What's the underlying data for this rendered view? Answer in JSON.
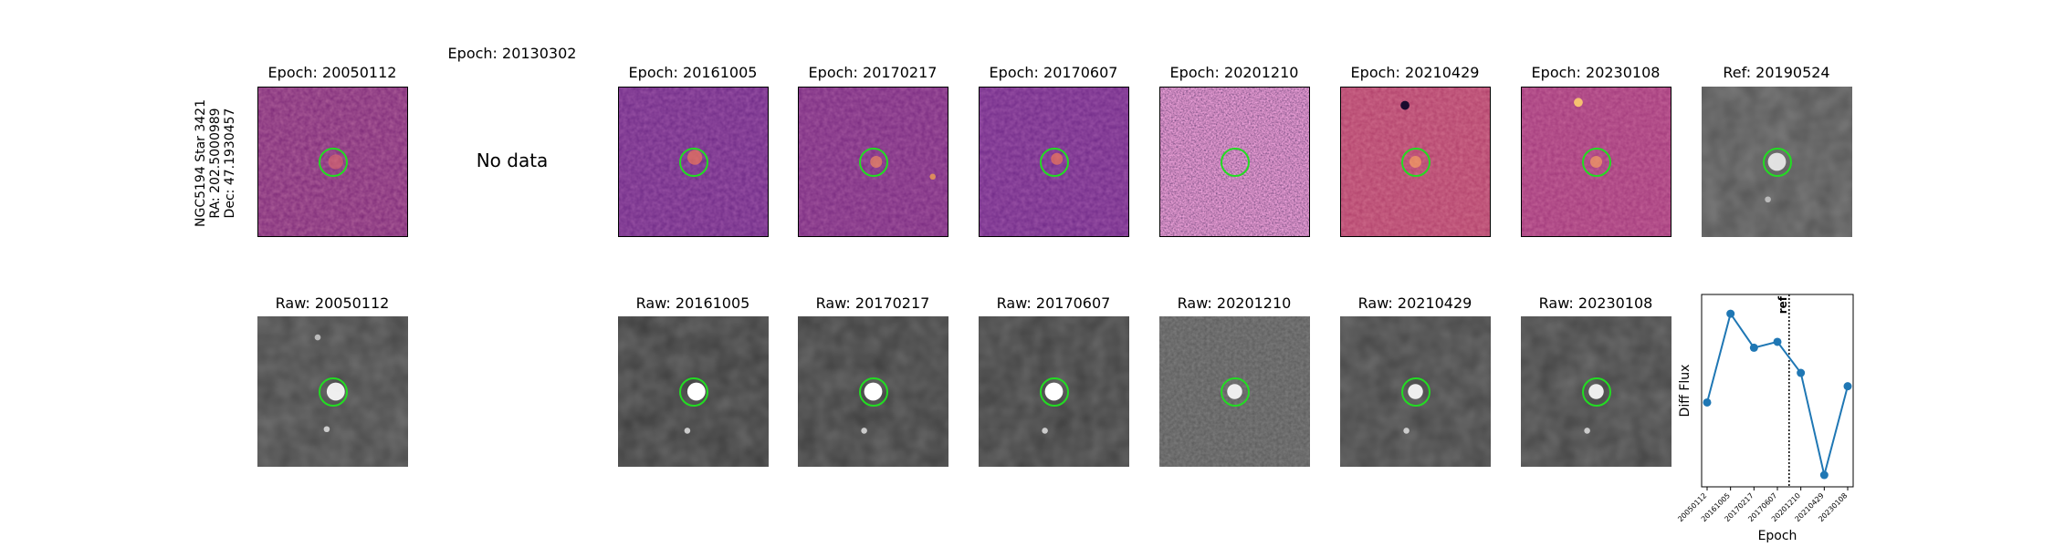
{
  "target": {
    "name": "NGC5194 Star 3421",
    "ra_label": "RA: 202.5000989",
    "dec_label": "Dec: 47.1930457"
  },
  "top_titles": [
    "Epoch: 20050112",
    "Epoch: 20130302",
    "Epoch: 20161005",
    "Epoch: 20170217",
    "Epoch: 20170607",
    "Epoch: 20201210",
    "Epoch: 20210429",
    "Epoch: 20230108",
    "Ref: 20190524"
  ],
  "no_data_label": "No data",
  "raw_titles": [
    "Raw: 20050112",
    "Raw: 20161005",
    "Raw: 20170217",
    "Raw: 20170607",
    "Raw: 20201210",
    "Raw: 20210429",
    "Raw: 20230108"
  ],
  "colors": {
    "aperture": "#22dd22",
    "series": "#1f77b4",
    "diff_colormap": "magma",
    "raw_colormap": "gray"
  },
  "chart_data": {
    "type": "line",
    "title": "",
    "xlabel": "Epoch",
    "ylabel": "Diff Flux",
    "x": [
      "20050112",
      "20161005",
      "20170217",
      "20170607",
      "20201210",
      "20210429",
      "20230108"
    ],
    "series": [
      {
        "values": [
          0.32,
          0.92,
          0.69,
          0.73,
          0.52,
          -0.17,
          0.43
        ]
      }
    ],
    "ylim": [
      -0.25,
      1.05
    ],
    "reference_line": {
      "label": "ref",
      "x": "20190524",
      "style": "dotted"
    },
    "grid": false
  }
}
